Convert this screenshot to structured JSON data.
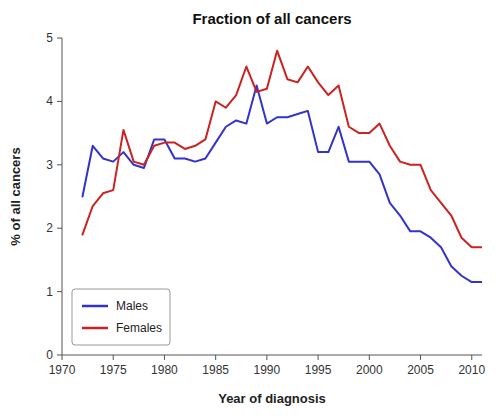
{
  "chart_data": {
    "type": "line",
    "title": "Fraction of all cancers",
    "xlabel": "Year of diagnosis",
    "ylabel": "% of all cancers",
    "x": [
      1972,
      1973,
      1974,
      1975,
      1976,
      1977,
      1978,
      1979,
      1980,
      1981,
      1982,
      1983,
      1984,
      1985,
      1986,
      1987,
      1988,
      1989,
      1990,
      1991,
      1992,
      1993,
      1994,
      1995,
      1996,
      1997,
      1998,
      1999,
      2000,
      2001,
      2002,
      2003,
      2004,
      2005,
      2006,
      2007,
      2008,
      2009,
      2010,
      2011
    ],
    "series": [
      {
        "name": "Males",
        "color": "#3333cc",
        "values": [
          2.5,
          3.3,
          3.1,
          3.05,
          3.2,
          3.0,
          2.95,
          3.4,
          3.4,
          3.1,
          3.1,
          3.05,
          3.1,
          3.35,
          3.6,
          3.7,
          3.65,
          4.25,
          3.65,
          3.75,
          3.75,
          3.8,
          3.85,
          3.2,
          3.2,
          3.6,
          3.05,
          3.05,
          3.05,
          2.85,
          2.4,
          2.2,
          1.95,
          1.95,
          1.85,
          1.7,
          1.4,
          1.25,
          1.15,
          1.15
        ]
      },
      {
        "name": "Females",
        "color": "#cc2222",
        "values": [
          1.9,
          2.35,
          2.55,
          2.6,
          3.55,
          3.05,
          3.0,
          3.3,
          3.35,
          3.35,
          3.25,
          3.3,
          3.4,
          4.0,
          3.9,
          4.1,
          4.55,
          4.15,
          4.2,
          4.8,
          4.35,
          4.3,
          4.55,
          4.3,
          4.1,
          4.25,
          3.6,
          3.5,
          3.5,
          3.65,
          3.3,
          3.05,
          3.0,
          3.0,
          2.6,
          2.4,
          2.2,
          1.85,
          1.7,
          1.7
        ]
      }
    ],
    "xlim": [
      1970,
      2011
    ],
    "ylim": [
      0,
      5
    ],
    "xticks": [
      1970,
      1975,
      1980,
      1985,
      1990,
      1995,
      2000,
      2005,
      2010
    ],
    "yticks": [
      0,
      1,
      2,
      3,
      4,
      5
    ],
    "grid": false,
    "legend": "lower left"
  }
}
